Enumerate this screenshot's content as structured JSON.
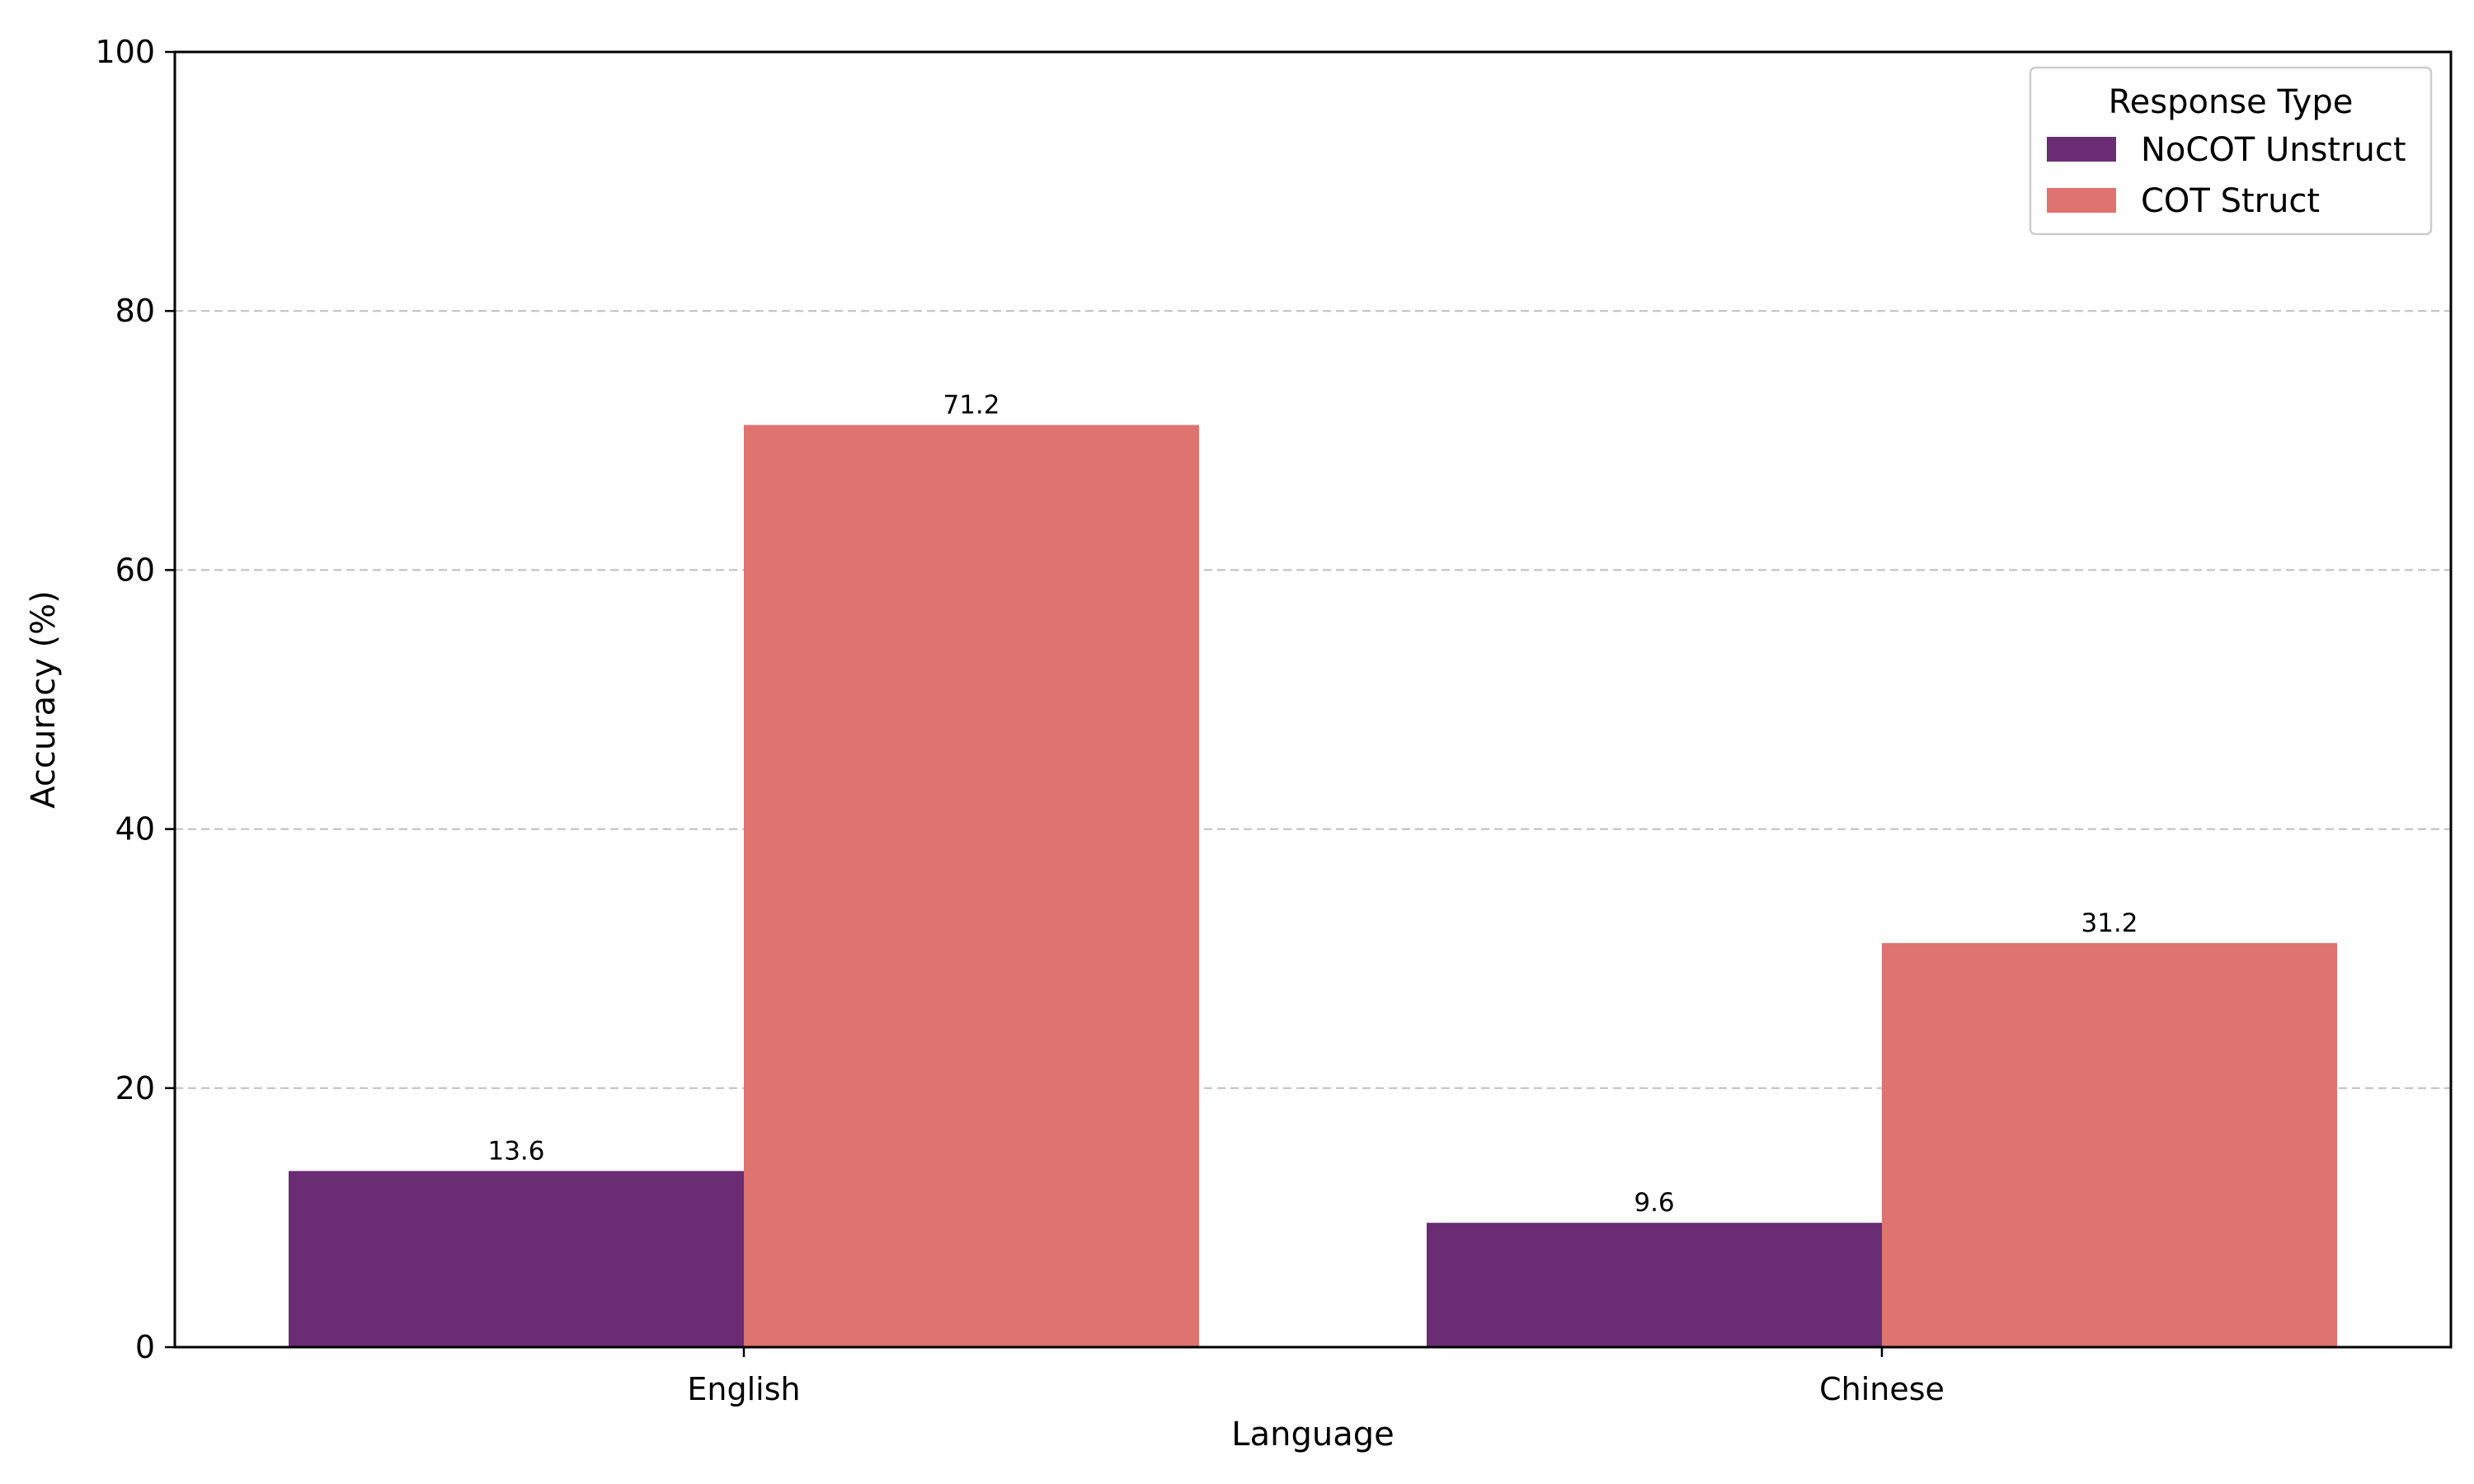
{
  "chart_data": {
    "type": "bar",
    "xlabel": "Language",
    "ylabel": "Accuracy (%)",
    "categories": [
      "English",
      "Chinese"
    ],
    "series": [
      {
        "name": "NoCOT Unstruct",
        "values": [
          13.6,
          9.6
        ],
        "color": "#6a2c73"
      },
      {
        "name": "COT Struct",
        "values": [
          71.2,
          31.2
        ],
        "color": "#df7370"
      }
    ],
    "ylim": [
      0,
      100
    ],
    "yticks": [
      0,
      20,
      40,
      60,
      80,
      100
    ],
    "grid": "horizontal dashed",
    "legend": {
      "title": "Response Type",
      "placement": "top-right"
    }
  }
}
